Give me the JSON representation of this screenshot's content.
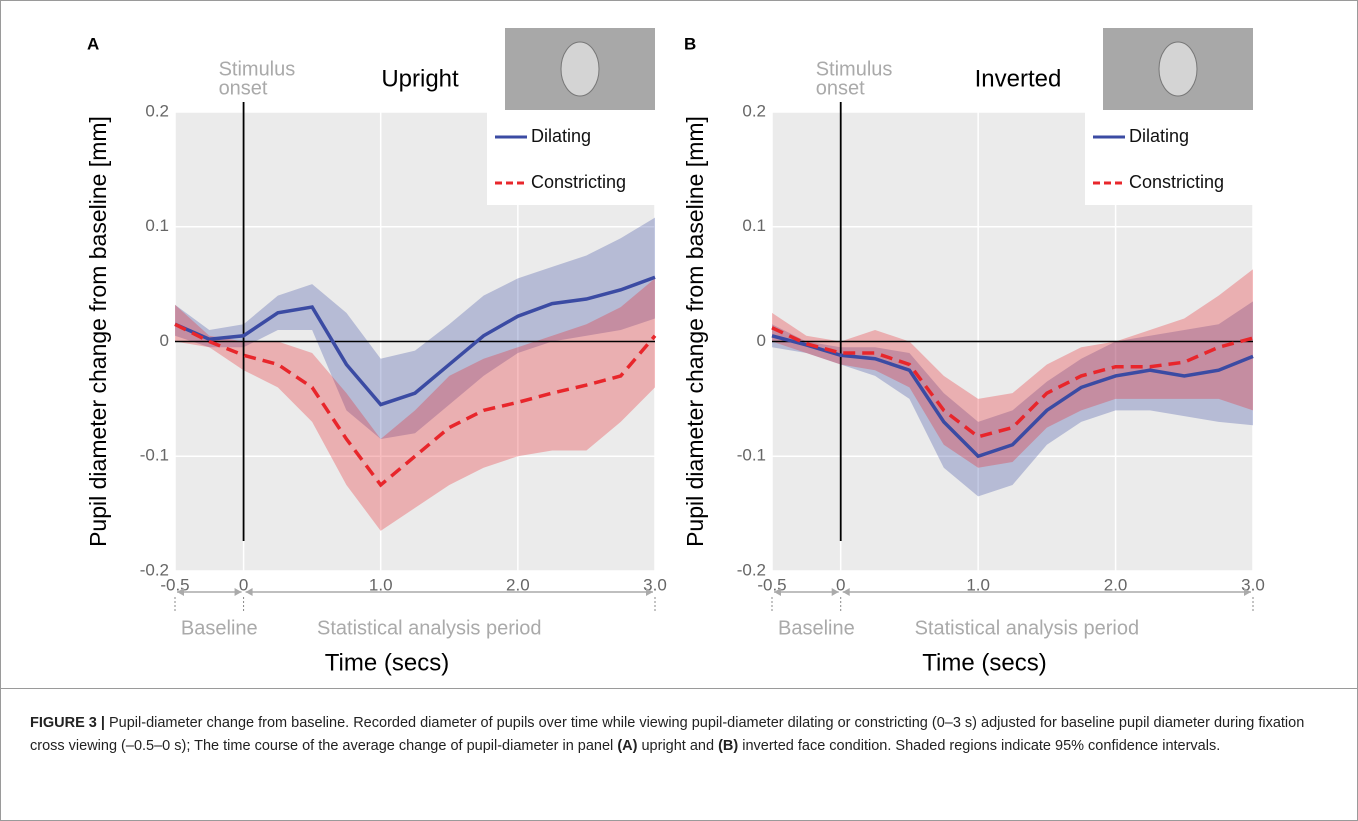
{
  "chart_data": [
    {
      "type": "line",
      "panel_label": "A",
      "title": "Upright",
      "annotation": [
        "Stimulus",
        "onset"
      ],
      "xlabel": "Time (secs)",
      "ylabel": "Pupil diameter change from baseline [mm]",
      "periods": [
        "Baseline",
        "Statistical analysis period"
      ],
      "x": [
        -0.5,
        -0.25,
        0,
        0.25,
        0.5,
        0.75,
        1.0,
        1.25,
        1.5,
        1.75,
        2.0,
        2.25,
        2.5,
        2.75,
        3.0
      ],
      "series": [
        {
          "name": "Dilating",
          "color": "#3b4ba3",
          "linestyle": "solid",
          "values": [
            0.015,
            0.002,
            0.005,
            0.025,
            0.03,
            -0.02,
            -0.055,
            -0.045,
            -0.02,
            0.005,
            0.022,
            0.033,
            0.037,
            0.045,
            0.056
          ],
          "upper": [
            0.032,
            0.01,
            0.015,
            0.04,
            0.05,
            0.025,
            -0.015,
            -0.008,
            0.015,
            0.04,
            0.055,
            0.065,
            0.075,
            0.09,
            0.108
          ],
          "lower": [
            0.005,
            -0.005,
            -0.005,
            0.01,
            0.01,
            -0.06,
            -0.085,
            -0.08,
            -0.055,
            -0.03,
            -0.01,
            0,
            0.005,
            0.01,
            0.02
          ]
        },
        {
          "name": "Constricting",
          "color": "#e8262b",
          "linestyle": "dashed",
          "values": [
            0.015,
            0.0,
            -0.012,
            -0.02,
            -0.04,
            -0.085,
            -0.125,
            -0.1,
            -0.075,
            -0.06,
            -0.053,
            -0.045,
            -0.038,
            -0.03,
            0.005
          ],
          "upper": [
            0.032,
            0.005,
            0.0,
            0.0,
            -0.01,
            -0.045,
            -0.085,
            -0.06,
            -0.03,
            -0.015,
            -0.005,
            0.005,
            0.015,
            0.03,
            0.055
          ],
          "lower": [
            0.0,
            -0.005,
            -0.025,
            -0.04,
            -0.07,
            -0.125,
            -0.165,
            -0.145,
            -0.125,
            -0.11,
            -0.1,
            -0.095,
            -0.095,
            -0.07,
            -0.04
          ]
        }
      ],
      "xlim": [
        -0.5,
        3.0
      ],
      "ylim": [
        -0.2,
        0.2
      ],
      "xticks": [
        -0.5,
        0,
        {
          "value": 1.0,
          "label": "1.0"
        },
        {
          "value": 2.0,
          "label": "2.0"
        },
        {
          "value": 3.0,
          "label": "3.0"
        }
      ],
      "yticks": [
        -0.2,
        -0.1,
        0,
        0.1,
        0.2
      ],
      "grid": true,
      "legend": "upper right"
    },
    {
      "type": "line",
      "panel_label": "B",
      "title": "Inverted",
      "annotation": [
        "Stimulus",
        "onset"
      ],
      "xlabel": "Time (secs)",
      "ylabel": "Pupil diameter change from baseline [mm]",
      "periods": [
        "Baseline",
        "Statistical analysis period"
      ],
      "x": [
        -0.5,
        -0.25,
        0,
        0.25,
        0.5,
        0.75,
        1.0,
        1.25,
        1.5,
        1.75,
        2.0,
        2.25,
        2.5,
        2.75,
        3.0
      ],
      "series": [
        {
          "name": "Dilating",
          "color": "#3b4ba3",
          "linestyle": "solid",
          "values": [
            0.005,
            -0.003,
            -0.012,
            -0.015,
            -0.025,
            -0.07,
            -0.1,
            -0.09,
            -0.06,
            -0.04,
            -0.03,
            -0.025,
            -0.03,
            -0.025,
            -0.013
          ],
          "upper": [
            0.015,
            0.0,
            -0.005,
            -0.005,
            -0.01,
            -0.045,
            -0.07,
            -0.06,
            -0.035,
            -0.015,
            0.0,
            0.005,
            0.01,
            0.015,
            0.035
          ],
          "lower": [
            -0.005,
            -0.01,
            -0.02,
            -0.03,
            -0.05,
            -0.11,
            -0.135,
            -0.125,
            -0.09,
            -0.07,
            -0.06,
            -0.06,
            -0.065,
            -0.07,
            -0.073
          ]
        },
        {
          "name": "Constricting",
          "color": "#e8262b",
          "linestyle": "dashed",
          "values": [
            0.012,
            -0.002,
            -0.01,
            -0.01,
            -0.02,
            -0.06,
            -0.083,
            -0.075,
            -0.045,
            -0.03,
            -0.022,
            -0.022,
            -0.018,
            -0.005,
            0.003
          ],
          "upper": [
            0.025,
            0.005,
            0.0,
            0.01,
            0.0,
            -0.03,
            -0.05,
            -0.045,
            -0.02,
            -0.005,
            0.0,
            0.01,
            0.02,
            0.04,
            0.063
          ],
          "lower": [
            0.0,
            -0.01,
            -0.02,
            -0.025,
            -0.04,
            -0.09,
            -0.11,
            -0.105,
            -0.075,
            -0.06,
            -0.05,
            -0.05,
            -0.05,
            -0.05,
            -0.06
          ]
        }
      ],
      "xlim": [
        -0.5,
        3.0
      ],
      "ylim": [
        -0.2,
        0.2
      ],
      "xticks": [
        -0.5,
        0,
        {
          "value": 1.0,
          "label": "1.0"
        },
        {
          "value": 2.0,
          "label": "2.0"
        },
        {
          "value": 3.0,
          "label": "3.0"
        }
      ],
      "yticks": [
        -0.2,
        -0.1,
        0,
        0.1,
        0.2
      ],
      "grid": true,
      "legend": "upper right"
    }
  ],
  "caption": {
    "label": "FIGURE 3 |",
    "parts": [
      "Pupil-diameter change from baseline. Recorded diameter of pupils over time while viewing pupil-diameter dilating or constricting (0–3 s) adjusted for baseline pupil diameter during fixation cross viewing (–0.5–0 s); The time course of the average change of pupil-diameter in panel ",
      "(A)",
      " upright and ",
      "(B)",
      " inverted face condition. Shaded regions indicate 95% confidence intervals."
    ]
  }
}
